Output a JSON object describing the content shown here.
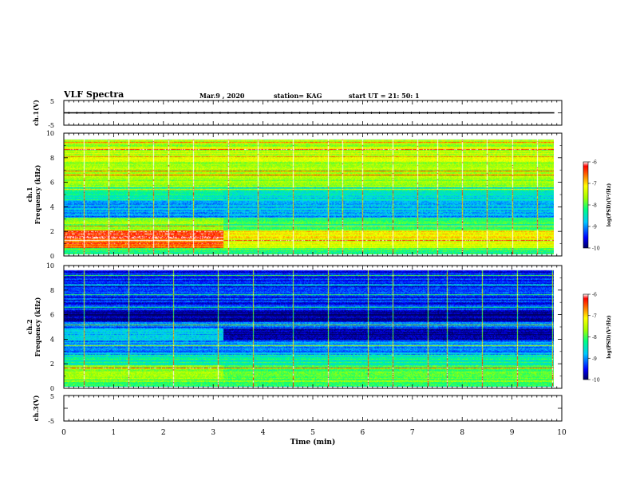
{
  "header": {
    "title": "VLF Spectra",
    "date": "Mar.9 , 2020",
    "station": "station= KAG",
    "start": "start UT = 21: 50: 1"
  },
  "chart_data": [
    {
      "type": "line",
      "title": "",
      "ylabel": "ch.1(V)",
      "ylim": [
        -5,
        5
      ],
      "yticks": [
        "5",
        "-5"
      ],
      "xlim": [
        0,
        10
      ],
      "series": [
        {
          "x": [
            0,
            9.85
          ],
          "y": [
            0,
            0
          ]
        }
      ]
    },
    {
      "type": "heatmap",
      "ylabel_line1": "ch.1",
      "ylabel_line2": "Frequency (kHz)",
      "ylim": [
        0,
        10
      ],
      "yticks": [
        "0",
        "2",
        "4",
        "6",
        "8",
        "10"
      ],
      "xlim": [
        0,
        10
      ],
      "data_end_min": 9.85,
      "colorbar": {
        "label": "log(PSD)(V²/Hz)",
        "range": [
          -10,
          -6
        ],
        "ticks": [
          "-6",
          "-7",
          "-8",
          "-9",
          "-10"
        ]
      },
      "bands": [
        {
          "f": [
            0.0,
            0.5
          ],
          "v_before": -8.2,
          "v_after": -8.2
        },
        {
          "f": [
            0.5,
            1.0
          ],
          "v_before": -6.5,
          "v_after": -7.3
        },
        {
          "f": [
            1.0,
            2.0
          ],
          "v_before": -6.4,
          "v_after": -7.2
        },
        {
          "f": [
            2.0,
            3.0
          ],
          "v_before": -7.8,
          "v_after": -8.2
        },
        {
          "f": [
            3.0,
            4.5
          ],
          "v_before": -8.9,
          "v_after": -8.8
        },
        {
          "f": [
            4.5,
            5.5
          ],
          "v_before": -8.3,
          "v_after": -8.5
        },
        {
          "f": [
            5.5,
            7.5
          ],
          "v_before": -7.6,
          "v_after": -7.6
        },
        {
          "f": [
            7.5,
            9.5
          ],
          "v_before": -7.5,
          "v_after": -7.5
        }
      ],
      "transition_min": 3.2,
      "tones_khz": [
        1.2,
        2.4,
        5.4,
        6.6,
        6.9,
        8.1,
        8.7,
        9.3
      ],
      "spikes_min": [
        0.4,
        0.9,
        1.3,
        1.8,
        2.1,
        2.6,
        3.3,
        3.9,
        4.6,
        5.3,
        5.6,
        6.0,
        6.6,
        7.1,
        7.5,
        8.0,
        8.5,
        9.0,
        9.5
      ]
    },
    {
      "type": "heatmap",
      "ylabel_line1": "ch.2",
      "ylabel_line2": "Frequency (kHz)",
      "ylim": [
        0,
        10
      ],
      "yticks": [
        "0",
        "2",
        "4",
        "6",
        "8",
        "10"
      ],
      "xlim": [
        0,
        10
      ],
      "data_end_min": 9.85,
      "colorbar": {
        "label": "log(PSD)(V²/Hz)",
        "range": [
          -10,
          -6
        ],
        "ticks": [
          "-6",
          "-7",
          "-8",
          "-9",
          "-10"
        ]
      },
      "bands": [
        {
          "f": [
            0.0,
            0.6
          ],
          "v_before": -8.0,
          "v_after": -8.0
        },
        {
          "f": [
            0.6,
            1.8
          ],
          "v_before": -7.6,
          "v_after": -7.9
        },
        {
          "f": [
            1.8,
            2.6
          ],
          "v_before": -8.3,
          "v_after": -8.3
        },
        {
          "f": [
            2.6,
            3.8
          ],
          "v_before": -8.9,
          "v_after": -8.9
        },
        {
          "f": [
            3.8,
            4.8
          ],
          "v_before": -8.7,
          "v_after": -9.8
        },
        {
          "f": [
            4.8,
            5.4
          ],
          "v_before": -9.2,
          "v_after": -9.2
        },
        {
          "f": [
            5.4,
            6.2
          ],
          "v_before": -9.9,
          "v_after": -9.9
        },
        {
          "f": [
            6.2,
            9.6
          ],
          "v_before": -9.4,
          "v_after": -9.4
        }
      ],
      "transition_min": 3.2,
      "tones_khz": [
        1.6,
        3.4,
        5.1,
        6.6,
        7.6,
        8.4,
        9.2
      ],
      "spikes_min": [
        0.4,
        1.3,
        2.2,
        3.1,
        3.8,
        4.6,
        5.3,
        6.1,
        6.6,
        7.3,
        7.7,
        8.4,
        9.1,
        9.8
      ]
    },
    {
      "type": "line",
      "ylabel": "ch.3(V)",
      "ylim": [
        -5,
        5
      ],
      "yticks": [
        "5",
        "-5"
      ],
      "xlim": [
        0,
        10
      ],
      "series": []
    }
  ],
  "xaxis": {
    "label": "Time (min)",
    "ticks": [
      "0",
      "1",
      "2",
      "3",
      "4",
      "5",
      "6",
      "7",
      "8",
      "9",
      "10"
    ]
  }
}
